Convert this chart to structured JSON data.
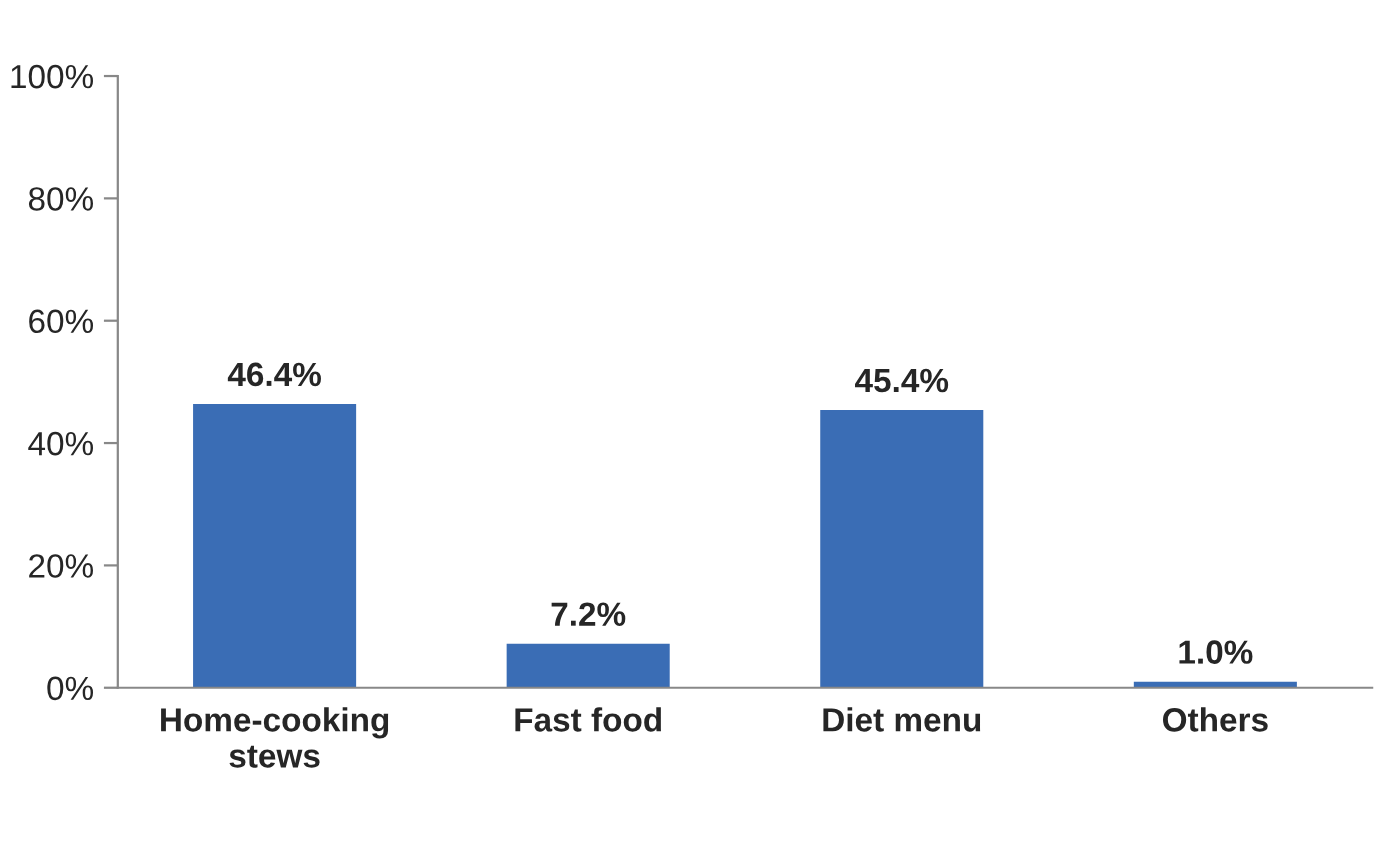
{
  "chart_data": {
    "type": "bar",
    "categories": [
      "Home-cooking\nstews",
      "Fast food",
      "Diet menu",
      "Others"
    ],
    "values": [
      46.4,
      7.2,
      45.4,
      1.0
    ],
    "value_labels": [
      "46.4%",
      "7.2%",
      "45.4%",
      "1.0%"
    ],
    "color": "#3a6db5",
    "ylim": [
      0,
      100
    ],
    "yticks": [
      {
        "value": 0,
        "label": "0%"
      },
      {
        "value": 20,
        "label": "20%"
      },
      {
        "value": 40,
        "label": "40%"
      },
      {
        "value": 60,
        "label": "60%"
      },
      {
        "value": 80,
        "label": "80%"
      },
      {
        "value": 100,
        "label": "100%"
      }
    ],
    "grid": false,
    "legend": false
  }
}
